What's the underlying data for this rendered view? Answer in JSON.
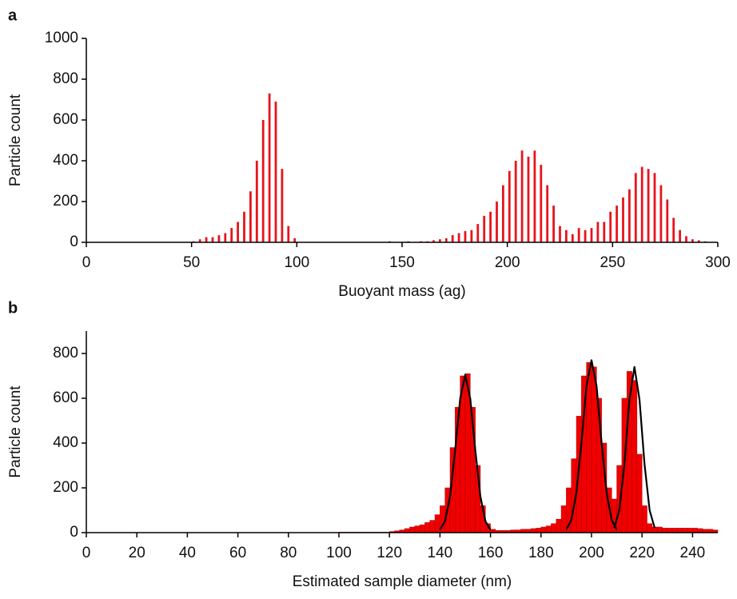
{
  "chart_data": [
    {
      "type": "bar",
      "panel": "a",
      "xlabel": "Buoyant mass (ag)",
      "ylabel": "Particle count",
      "color": "#e8141c",
      "x": [
        51,
        54,
        57,
        60,
        63,
        66,
        69,
        72,
        75,
        78,
        81,
        84,
        87,
        90,
        93,
        96,
        99,
        144,
        153,
        159,
        162,
        165,
        168,
        171,
        174,
        177,
        180,
        183,
        186,
        189,
        192,
        195,
        198,
        201,
        204,
        207,
        210,
        213,
        216,
        219,
        222,
        225,
        228,
        231,
        234,
        237,
        240,
        243,
        246,
        249,
        252,
        255,
        258,
        261,
        264,
        267,
        270,
        273,
        276,
        279,
        282,
        285,
        288,
        291,
        294,
        297
      ],
      "values": [
        5,
        15,
        25,
        25,
        35,
        45,
        70,
        100,
        150,
        250,
        400,
        600,
        730,
        690,
        360,
        80,
        20,
        5,
        5,
        5,
        5,
        10,
        15,
        20,
        35,
        45,
        55,
        60,
        90,
        130,
        150,
        200,
        280,
        350,
        400,
        450,
        420,
        450,
        380,
        280,
        180,
        80,
        60,
        40,
        70,
        60,
        70,
        100,
        100,
        150,
        180,
        220,
        260,
        340,
        370,
        360,
        340,
        280,
        210,
        120,
        60,
        30,
        15,
        10,
        5,
        2
      ],
      "xlim": [
        0,
        300
      ],
      "xticks": [
        0,
        50,
        100,
        150,
        200,
        250,
        300
      ],
      "ylim": [
        0,
        1000
      ],
      "yticks": [
        0,
        200,
        400,
        600,
        800,
        1000
      ]
    },
    {
      "type": "histogram",
      "panel": "b",
      "xlabel": "Estimated sample diameter (nm)",
      "ylabel": "Particle count",
      "color": "#f00000",
      "bins": [
        100,
        102,
        104,
        106,
        108,
        110,
        112,
        114,
        116,
        118,
        120,
        122,
        124,
        126,
        128,
        130,
        132,
        134,
        136,
        138,
        140,
        142,
        144,
        146,
        148,
        150,
        152,
        154,
        156,
        158,
        160,
        162,
        164,
        166,
        168,
        170,
        172,
        174,
        176,
        178,
        180,
        182,
        184,
        186,
        188,
        190,
        192,
        194,
        196,
        198,
        200,
        202,
        204,
        206,
        208,
        210,
        212,
        214,
        216,
        218,
        220,
        222,
        224,
        226,
        228,
        230,
        232,
        234,
        236,
        238,
        240,
        242,
        244,
        246,
        248,
        250
      ],
      "values": [
        2,
        2,
        2,
        2,
        2,
        2,
        2,
        2,
        2,
        2,
        5,
        8,
        12,
        18,
        25,
        30,
        35,
        45,
        55,
        80,
        120,
        200,
        380,
        560,
        700,
        710,
        560,
        300,
        120,
        40,
        15,
        10,
        10,
        10,
        12,
        12,
        15,
        15,
        18,
        20,
        25,
        30,
        40,
        60,
        120,
        200,
        330,
        520,
        700,
        760,
        740,
        600,
        400,
        200,
        150,
        300,
        600,
        720,
        680,
        350,
        120,
        40,
        25,
        25,
        20,
        20,
        20,
        20,
        20,
        20,
        20,
        18,
        15,
        15,
        12
      ],
      "fits": [
        {
          "color": "#000000",
          "x": [
            140,
            142,
            144,
            146,
            148,
            150,
            152,
            154,
            156,
            158,
            160
          ],
          "values": [
            12,
            51,
            162,
            367,
            598,
            705,
            598,
            367,
            162,
            51,
            12
          ]
        },
        {
          "color": "#000000",
          "x": [
            190,
            192,
            194,
            196,
            198,
            200,
            202,
            204,
            206,
            208,
            210
          ],
          "values": [
            13,
            56,
            177,
            400,
            654,
            770,
            654,
            400,
            177,
            56,
            13
          ]
        },
        {
          "color": "#000000",
          "x": [
            209,
            211,
            213,
            215,
            217,
            219,
            221,
            223,
            225
          ],
          "values": [
            21,
            100,
            304,
            593,
            740,
            593,
            304,
            100,
            21
          ]
        }
      ],
      "xlim": [
        0,
        250
      ],
      "xticks": [
        0,
        20,
        40,
        60,
        80,
        100,
        120,
        140,
        160,
        180,
        200,
        220,
        240
      ],
      "ylim": [
        0,
        900
      ],
      "yticks": [
        0,
        200,
        400,
        600,
        800
      ]
    }
  ]
}
